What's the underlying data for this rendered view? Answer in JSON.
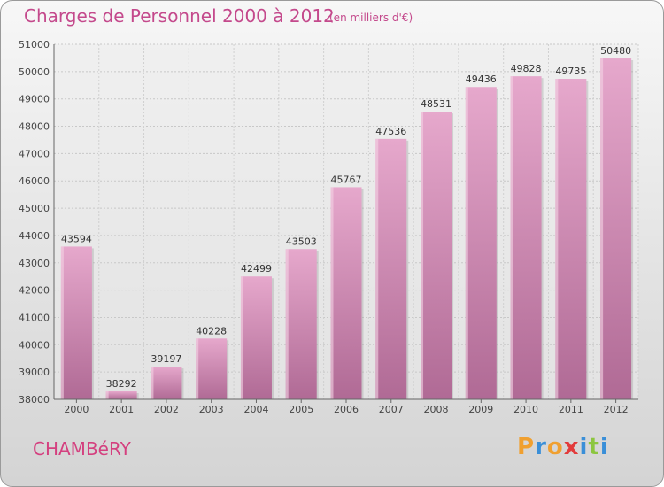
{
  "header": {
    "title": "Charges de Personnel 2000 à 2012",
    "subtitle": "(en milliers d'€)"
  },
  "footer": {
    "city": "CHAMBéRY",
    "logo_letters": [
      "P",
      "r",
      "o",
      "x",
      "i",
      "t",
      "i"
    ],
    "logo_colors": [
      "#f0a030",
      "#3a8fd8",
      "#f0a030",
      "#e23c3c",
      "#3a8fd8",
      "#8cc63f",
      "#3a8fd8"
    ]
  },
  "colors": {
    "bar_top": "#e6a8cc",
    "bar_bottom": "#b06a95",
    "text_accent": "#c4498c"
  },
  "chart_data": {
    "type": "bar",
    "title": "Charges de Personnel 2000 à 2012",
    "subtitle": "(en milliers d'€)",
    "xlabel": "",
    "ylabel": "",
    "categories": [
      "2000",
      "2001",
      "2002",
      "2003",
      "2004",
      "2005",
      "2006",
      "2007",
      "2008",
      "2009",
      "2010",
      "2011",
      "2012"
    ],
    "values": [
      43594,
      38292,
      39197,
      40228,
      42499,
      43503,
      45767,
      47536,
      48531,
      49436,
      49828,
      49735,
      50480
    ],
    "ylim": [
      38000,
      51000
    ],
    "yticks": [
      38000,
      39000,
      40000,
      41000,
      42000,
      43000,
      44000,
      45000,
      46000,
      47000,
      48000,
      49000,
      50000,
      51000
    ],
    "grid": true,
    "data_labels": true
  }
}
